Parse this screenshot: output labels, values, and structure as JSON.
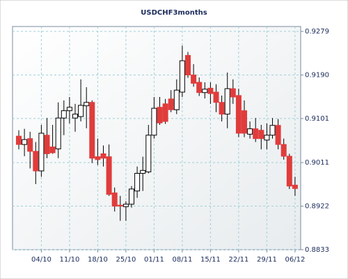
{
  "chart_data": {
    "type": "candlestick",
    "title": "USDCHF3months",
    "categories": [
      null,
      null,
      null,
      null,
      "04/10",
      null,
      null,
      null,
      null,
      "11/10",
      null,
      null,
      null,
      null,
      "18/10",
      null,
      null,
      null,
      null,
      "25/10",
      null,
      null,
      null,
      null,
      "01/11",
      null,
      null,
      null,
      null,
      "08/11",
      null,
      null,
      null,
      null,
      "15/11",
      null,
      null,
      null,
      null,
      "22/11",
      null,
      null,
      null,
      null,
      "29/11",
      null,
      null,
      null,
      null,
      "06/12"
    ],
    "series": [
      {
        "name": "USDCHF",
        "up_color": "#ffffff",
        "down_color": "#e03c3c",
        "open": [
          0.9065,
          0.9048,
          0.906,
          0.9034,
          0.8994,
          0.9067,
          0.9043,
          0.9039,
          0.9102,
          0.9117,
          0.9102,
          0.9105,
          0.9127,
          0.9134,
          0.9023,
          0.9029,
          0.9023,
          0.8949,
          0.8924,
          0.8921,
          0.8926,
          0.8953,
          0.8989,
          0.8992,
          0.9067,
          0.9124,
          0.9131,
          0.9141,
          0.9119,
          0.9155,
          0.923,
          0.919,
          0.9175,
          0.9154,
          0.9163,
          0.9155,
          0.9134,
          0.911,
          0.9162,
          0.9148,
          0.9117,
          0.9069,
          0.908,
          0.9077,
          0.9057,
          0.9067,
          0.9087,
          0.9048,
          0.9024,
          0.8965
        ],
        "high": [
          0.9077,
          0.908,
          0.9074,
          0.9053,
          0.9088,
          0.9102,
          0.9088,
          0.9134,
          0.9138,
          0.9145,
          0.9131,
          0.9181,
          0.9165,
          0.9138,
          0.906,
          0.9046,
          0.9048,
          0.896,
          0.8943,
          0.8932,
          0.8963,
          0.9003,
          0.9023,
          0.9088,
          0.9145,
          0.9145,
          0.9141,
          0.9159,
          0.9181,
          0.925,
          0.9237,
          0.9212,
          0.9185,
          0.9175,
          0.9175,
          0.9171,
          0.9148,
          0.9195,
          0.9181,
          0.9162,
          0.9138,
          0.9095,
          0.9102,
          0.9088,
          0.9091,
          0.9102,
          0.91,
          0.906,
          0.9029,
          0.8982
        ],
        "low": [
          0.9038,
          0.9024,
          0.8999,
          0.8967,
          0.8982,
          0.902,
          0.9029,
          0.902,
          0.9067,
          0.9091,
          0.9074,
          0.9095,
          0.9081,
          0.901,
          0.9006,
          0.9003,
          0.8943,
          0.8911,
          0.8892,
          0.8892,
          0.8919,
          0.8939,
          0.8953,
          0.8989,
          0.906,
          0.9088,
          0.909,
          0.9114,
          0.911,
          0.9145,
          0.9184,
          0.9166,
          0.9147,
          0.9142,
          0.9131,
          0.9114,
          0.9095,
          0.9081,
          0.9131,
          0.9063,
          0.9063,
          0.906,
          0.9053,
          0.9038,
          0.9038,
          0.906,
          0.9038,
          0.9017,
          0.8957,
          0.8943
        ],
        "close": [
          0.9048,
          0.9058,
          0.9034,
          0.8994,
          0.9071,
          0.9029,
          0.9031,
          0.9102,
          0.9117,
          0.9124,
          0.911,
          0.9128,
          0.9134,
          0.902,
          0.9017,
          0.902,
          0.8946,
          0.8922,
          0.8922,
          0.8926,
          0.8957,
          0.8989,
          0.8995,
          0.9067,
          0.9122,
          0.9092,
          0.9095,
          0.9119,
          0.9159,
          0.9219,
          0.919,
          0.9173,
          0.9154,
          0.9161,
          0.9152,
          0.9134,
          0.911,
          0.9162,
          0.9145,
          0.9071,
          0.9071,
          0.908,
          0.906,
          0.906,
          0.9067,
          0.9087,
          0.9048,
          0.9024,
          0.8963,
          0.8958
        ]
      }
    ],
    "ylim": [
      0.8833,
      0.9289
    ],
    "yticks": [
      0.9279,
      {
        "value": 0.919,
        "label": "0.9190"
      },
      0.9101,
      0.9011,
      0.8922,
      0.8833
    ],
    "grid": true
  }
}
